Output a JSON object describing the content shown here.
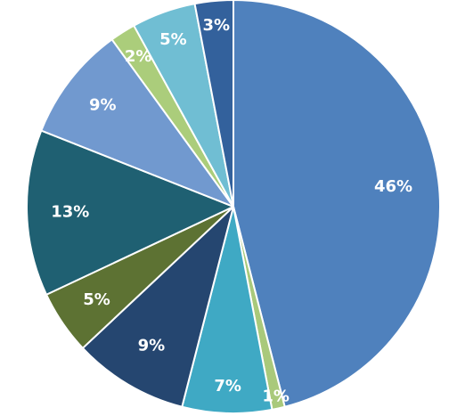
{
  "chart_data": {
    "type": "pie",
    "title": "",
    "start_angle_deg": 0,
    "direction": "clockwise",
    "slices": [
      {
        "value": 46,
        "label": "46%",
        "color": "#4F81BD",
        "label_dark": false
      },
      {
        "value": 1,
        "label": "1%",
        "color": "#A9C97B",
        "label_dark": false
      },
      {
        "value": 7,
        "label": "7%",
        "color": "#3FA9C4",
        "label_dark": false
      },
      {
        "value": 9,
        "label": "9%",
        "color": "#254670",
        "label_dark": false
      },
      {
        "value": 5,
        "label": "5%",
        "color": "#5D7233",
        "label_dark": false
      },
      {
        "value": 13,
        "label": "13%",
        "color": "#1F6072",
        "label_dark": false
      },
      {
        "value": 9,
        "label": "9%",
        "color": "#7199CF",
        "label_dark": false
      },
      {
        "value": 2,
        "label": "2%",
        "color": "#ABCD7B",
        "label_dark": false
      },
      {
        "value": 5,
        "label": "5%",
        "color": "#70BED3",
        "label_dark": false
      },
      {
        "value": 3,
        "label": "3%",
        "color": "#33619C",
        "label_dark": false
      }
    ]
  }
}
